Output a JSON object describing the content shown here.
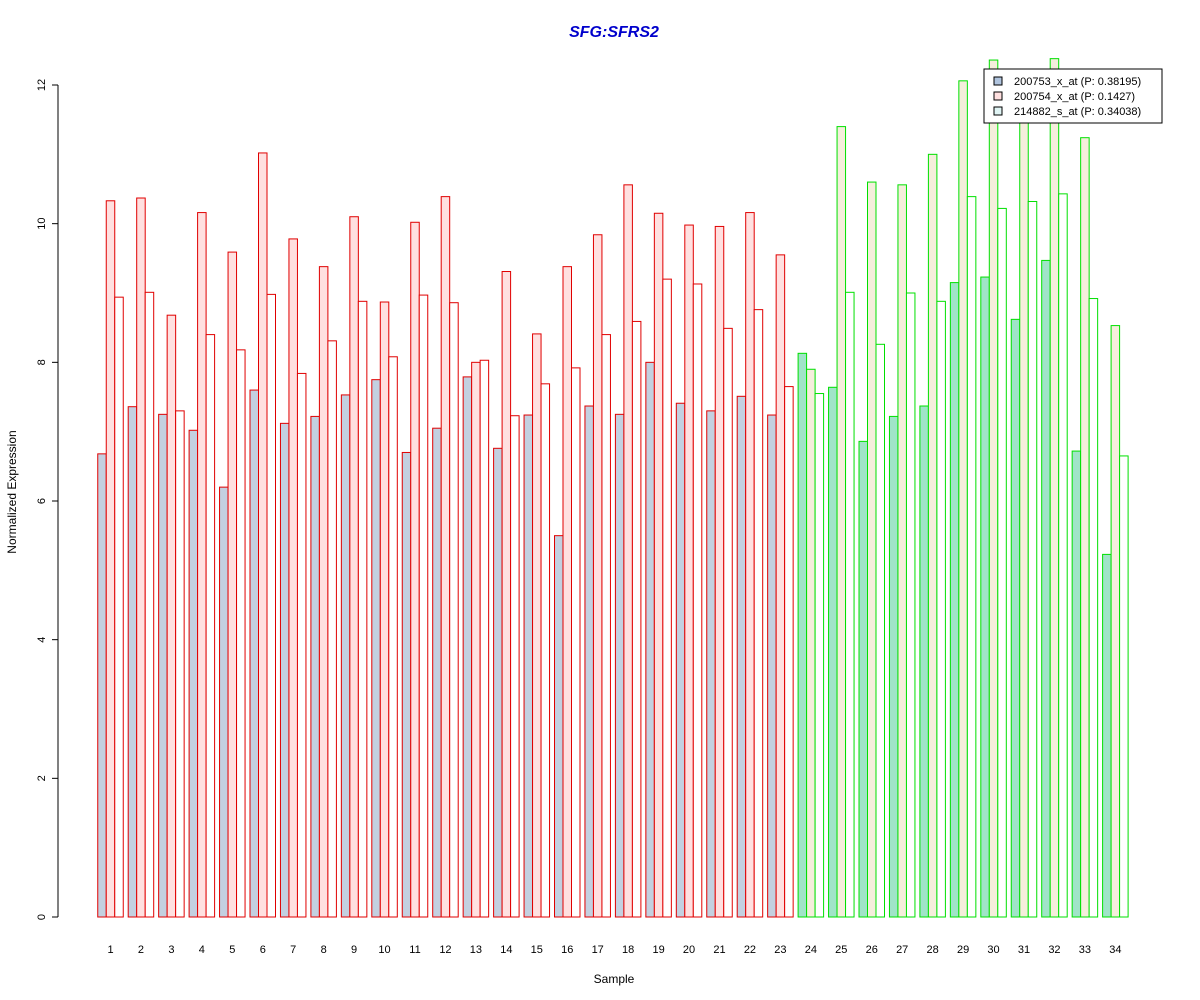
{
  "chart_data": {
    "type": "bar",
    "title": "SFG:SFRS2",
    "xlabel": "Sample",
    "ylabel": "Normalized Expression",
    "ylim": [
      0,
      12
    ],
    "yticks": [
      "0",
      "2",
      "4",
      "6",
      "8",
      "10",
      "12"
    ],
    "grid": false,
    "legend_position": "top-right",
    "categories": [
      "1",
      "2",
      "3",
      "4",
      "5",
      "6",
      "7",
      "8",
      "9",
      "10",
      "11",
      "12",
      "13",
      "14",
      "15",
      "16",
      "17",
      "18",
      "19",
      "20",
      "21",
      "22",
      "23",
      "24",
      "25",
      "26",
      "27",
      "28",
      "29",
      "30",
      "31",
      "32",
      "33",
      "34"
    ],
    "group_colors": {
      "group_1_samples": "1-23",
      "group_1_outline": "#e00000",
      "group_2_samples": "24-34",
      "group_2_outline": "#00e000"
    },
    "series": [
      {
        "name": "200753_x_at (P: 0.38195)",
        "fill_group_1": "#c3d0e0",
        "fill_group_2": "#a0e4c8",
        "legend_swatch": "#b0c4de",
        "values": [
          6.68,
          7.36,
          7.25,
          7.02,
          6.2,
          7.6,
          7.12,
          7.22,
          7.53,
          7.75,
          6.7,
          7.05,
          7.79,
          6.76,
          7.24,
          5.5,
          7.37,
          7.25,
          8.0,
          7.41,
          7.3,
          7.51,
          7.24,
          8.13,
          7.64,
          6.86,
          7.22,
          7.37,
          9.15,
          9.23,
          8.62,
          9.47,
          6.72,
          5.23
        ]
      },
      {
        "name": "200754_x_at (P: 0.1427)",
        "fill_group_1": "#ffe0e0",
        "fill_group_2": "#f5eedc",
        "legend_swatch": "#ffe0e0",
        "values": [
          10.33,
          10.37,
          8.68,
          10.16,
          9.59,
          11.02,
          9.78,
          9.38,
          10.1,
          8.87,
          10.02,
          10.39,
          8.0,
          9.31,
          8.41,
          9.38,
          9.84,
          10.56,
          10.15,
          9.98,
          9.96,
          10.16,
          9.55,
          7.9,
          11.4,
          10.6,
          10.56,
          11.0,
          12.06,
          12.36,
          11.7,
          12.38,
          11.24,
          8.53
        ]
      },
      {
        "name": "214882_s_at (P: 0.34038)",
        "fill_group_1": "#ffffff",
        "fill_group_2": "#ffffff",
        "legend_swatch": "#e0f4f4",
        "values": [
          8.94,
          9.01,
          7.3,
          8.4,
          8.18,
          8.98,
          7.84,
          8.31,
          8.88,
          8.08,
          8.97,
          8.86,
          8.03,
          7.23,
          7.69,
          7.92,
          8.4,
          8.59,
          9.2,
          9.13,
          8.49,
          8.76,
          7.65,
          7.55,
          9.01,
          8.26,
          9.0,
          8.88,
          10.39,
          10.22,
          10.32,
          10.43,
          8.92,
          6.65
        ]
      }
    ]
  }
}
